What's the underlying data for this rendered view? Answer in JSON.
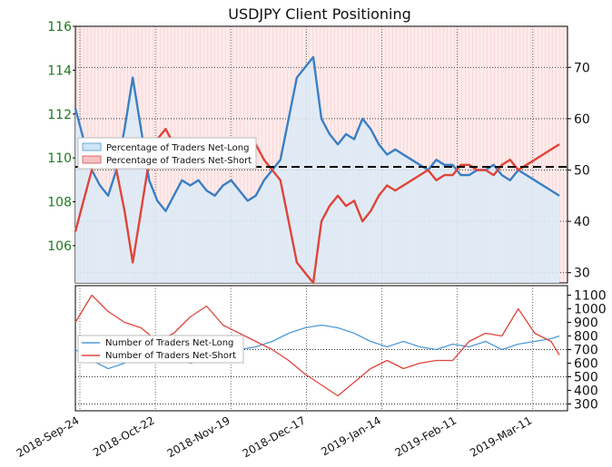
{
  "chart_data": [
    {
      "type": "line",
      "title": "USDJPY Client Positioning",
      "left_axis": {
        "ticks": [
          "116",
          "114",
          "112",
          "110",
          "108",
          "106"
        ],
        "ylim": [
          104.3,
          116
        ]
      },
      "right_axis": {
        "ticks": [
          "70",
          "60",
          "50",
          "40",
          "30"
        ],
        "ylim": [
          28,
          78
        ]
      },
      "reference_line_value": 50,
      "legend_position": "center-left",
      "grid": true,
      "series": [
        {
          "name": "Percentage of Traders Net-Long",
          "color": "#3a7fc4",
          "x": [
            0,
            3,
            6,
            9,
            12,
            15,
            18,
            21,
            24,
            27,
            30,
            33,
            36,
            39,
            42,
            45,
            48,
            51,
            54,
            57,
            60,
            63,
            66,
            69,
            72,
            75,
            78,
            81,
            84,
            87,
            90,
            93,
            96,
            99,
            102,
            105,
            108,
            111,
            114,
            117,
            120,
            123,
            126,
            129,
            132,
            135,
            138,
            141,
            144,
            147,
            150,
            153,
            156,
            159,
            162,
            165,
            168,
            171,
            174,
            177
          ],
          "values": [
            62,
            56,
            50,
            47,
            45,
            50,
            58,
            68,
            58,
            48,
            44,
            42,
            45,
            48,
            47,
            48,
            46,
            45,
            47,
            48,
            46,
            44,
            45,
            48,
            50,
            52,
            60,
            68,
            70,
            72,
            60,
            57,
            55,
            57,
            56,
            60,
            58,
            55,
            53,
            54,
            53,
            52,
            51,
            50,
            52,
            51,
            51,
            49,
            49,
            50,
            50,
            51,
            49,
            48,
            50,
            49,
            48,
            47,
            46,
            45
          ]
        },
        {
          "name": "Percentage of Traders Net-Short",
          "color": "#e0443a",
          "x": [
            0,
            3,
            6,
            9,
            12,
            15,
            18,
            21,
            24,
            27,
            30,
            33,
            36,
            39,
            42,
            45,
            48,
            51,
            54,
            57,
            60,
            63,
            66,
            69,
            72,
            75,
            78,
            81,
            84,
            87,
            90,
            93,
            96,
            99,
            102,
            105,
            108,
            111,
            114,
            117,
            120,
            123,
            126,
            129,
            132,
            135,
            138,
            141,
            144,
            147,
            150,
            153,
            156,
            159,
            162,
            165,
            168,
            171,
            174,
            177
          ],
          "values": [
            38,
            44,
            50,
            53,
            55,
            50,
            42,
            32,
            42,
            52,
            56,
            58,
            55,
            52,
            53,
            52,
            54,
            55,
            53,
            52,
            54,
            56,
            55,
            52,
            50,
            48,
            40,
            32,
            30,
            28,
            40,
            43,
            45,
            43,
            44,
            40,
            42,
            45,
            47,
            46,
            47,
            48,
            49,
            50,
            48,
            49,
            49,
            51,
            51,
            50,
            50,
            49,
            51,
            52,
            50,
            51,
            52,
            53,
            54,
            55
          ]
        },
        {
          "name": "Number of Traders Net-Long",
          "color": "#4f9ad8",
          "x": [
            0,
            6,
            12,
            18,
            24,
            30,
            36,
            42,
            48,
            54,
            60,
            66,
            72,
            78,
            84,
            90,
            96,
            102,
            108,
            114,
            120,
            126,
            132,
            138,
            144,
            150,
            156,
            162,
            168,
            174,
            177
          ],
          "values": [
            700,
            620,
            560,
            600,
            650,
            700,
            640,
            600,
            620,
            680,
            700,
            720,
            760,
            820,
            860,
            880,
            860,
            820,
            760,
            720,
            760,
            720,
            700,
            740,
            720,
            760,
            700,
            740,
            760,
            780,
            800
          ]
        },
        {
          "name": "Number of Traders Net-Short",
          "color": "#e0443a",
          "x": [
            0,
            6,
            12,
            18,
            24,
            30,
            36,
            42,
            48,
            54,
            60,
            66,
            72,
            78,
            84,
            90,
            96,
            102,
            108,
            114,
            120,
            126,
            132,
            138,
            144,
            150,
            156,
            162,
            168,
            174,
            177
          ],
          "values": [
            900,
            1100,
            980,
            900,
            860,
            760,
            820,
            940,
            1020,
            880,
            820,
            760,
            700,
            620,
            520,
            440,
            360,
            460,
            560,
            620,
            560,
            600,
            620,
            620,
            760,
            820,
            800,
            1000,
            820,
            760,
            660
          ]
        }
      ],
      "x_ticks": [
        "2018-Sep-24",
        "2018-Oct-22",
        "2018-Nov-19",
        "2018-Dec-17",
        "2019-Jan-14",
        "2019-Feb-11",
        "2019-Mar-11"
      ],
      "lower_right_ticks": [
        "1100",
        "1000",
        "900",
        "800",
        "700",
        "600",
        "500",
        "400",
        "300"
      ]
    }
  ]
}
